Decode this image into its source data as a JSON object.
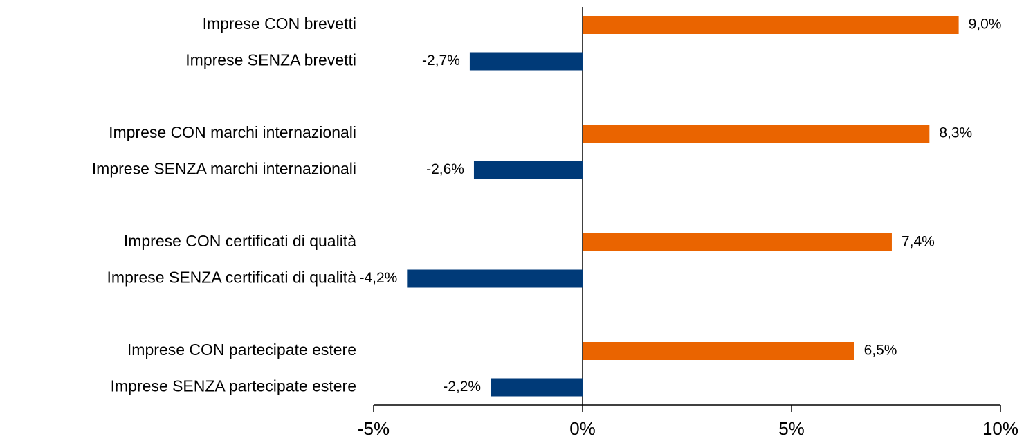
{
  "chart_data": {
    "type": "barh",
    "categories": [
      "Imprese CON brevetti",
      "Imprese SENZA brevetti",
      "Imprese CON marchi internazionali",
      "Imprese SENZA marchi internazionali",
      "Imprese CON certificati di qualità",
      "Imprese SENZA certificati di qualità",
      "Imprese CON partecipate estere",
      "Imprese SENZA partecipate estere"
    ],
    "values": [
      9.0,
      -2.7,
      8.3,
      -2.6,
      7.4,
      -4.2,
      6.5,
      -2.2
    ],
    "value_labels": [
      "9,0%",
      "-2,7%",
      "8,3%",
      "-2,6%",
      "7,4%",
      "-4,2%",
      "6,5%",
      "-2,2%"
    ],
    "colors": [
      "#ea6400",
      "#003a78",
      "#ea6400",
      "#003a78",
      "#ea6400",
      "#003a78",
      "#ea6400",
      "#003a78"
    ],
    "xlim": [
      -5,
      10
    ],
    "xticks": [
      {
        "value": -5,
        "label": "-5%"
      },
      {
        "value": 0,
        "label": "0%"
      },
      {
        "value": 5,
        "label": "5%"
      },
      {
        "value": 10,
        "label": "10%"
      }
    ]
  }
}
